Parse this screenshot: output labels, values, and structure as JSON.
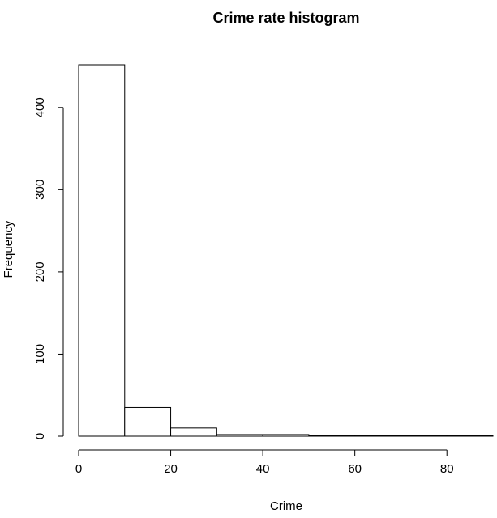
{
  "chart_data": {
    "type": "bar",
    "title": "Crime rate histogram",
    "xlabel": "Crime",
    "ylabel": "Frequency",
    "bins": [
      {
        "start": 0,
        "end": 10,
        "count": 452
      },
      {
        "start": 10,
        "end": 20,
        "count": 35
      },
      {
        "start": 20,
        "end": 30,
        "count": 10
      },
      {
        "start": 30,
        "end": 40,
        "count": 2
      },
      {
        "start": 40,
        "end": 50,
        "count": 2
      },
      {
        "start": 50,
        "end": 60,
        "count": 1
      },
      {
        "start": 60,
        "end": 70,
        "count": 1
      },
      {
        "start": 70,
        "end": 80,
        "count": 1
      },
      {
        "start": 80,
        "end": 90,
        "count": 1
      }
    ],
    "xticks": [
      0,
      20,
      40,
      60,
      80
    ],
    "yticks": [
      0,
      100,
      200,
      300,
      400
    ],
    "xlim": [
      0,
      90
    ],
    "ylim": [
      0,
      452
    ],
    "grid": false
  }
}
